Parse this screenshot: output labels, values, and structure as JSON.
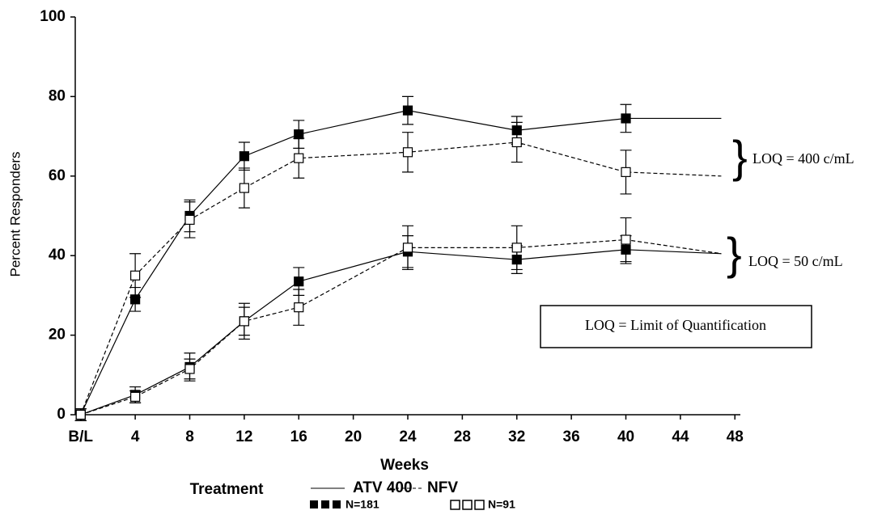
{
  "chart_data": {
    "type": "line",
    "x_label": "Weeks",
    "y_label": "Percent Responders",
    "x": [
      0,
      4,
      8,
      12,
      16,
      24,
      32,
      40,
      47
    ],
    "xlim": [
      -0.4,
      48.4
    ],
    "ylim": [
      0,
      100
    ],
    "xticks": [
      {
        "value": 0,
        "label": "B/L"
      },
      4,
      8,
      12,
      16,
      20,
      24,
      28,
      32,
      36,
      40,
      44,
      48
    ],
    "yticks": [
      0,
      20,
      40,
      60,
      80,
      100
    ],
    "series": [
      {
        "name": "ATV 400",
        "color": "#000000",
        "line_style": "solid",
        "marker": "filled",
        "values": [
          0,
          29,
          50,
          65,
          70.5,
          76.5,
          71.5,
          74.5,
          74.5
        ],
        "errors": [
          1.5,
          3,
          4,
          3.5,
          3.5,
          3.5,
          3.5,
          3.5,
          null
        ]
      },
      {
        "name": "NFV",
        "color": "#000000",
        "line_style": "dashed",
        "marker": "open",
        "values": [
          0,
          35,
          49,
          57,
          64.5,
          66,
          68.5,
          61,
          60
        ],
        "errors": [
          1.5,
          5.5,
          4.5,
          5,
          5,
          5,
          5,
          5.5,
          null
        ]
      },
      {
        "name": "ATV 400",
        "color": "#000000",
        "line_style": "solid",
        "marker": "filled",
        "values": [
          0,
          5,
          12,
          23.5,
          33.5,
          41,
          39,
          41.5,
          40.5
        ],
        "errors": [
          1.5,
          2,
          3.5,
          4.5,
          3.5,
          4,
          3.5,
          3.5,
          null
        ]
      },
      {
        "name": "NFV",
        "color": "#000000",
        "line_style": "dashed",
        "marker": "open",
        "values": [
          0,
          4.5,
          11.5,
          23.5,
          27,
          42,
          42,
          44,
          40.5
        ],
        "errors": [
          1.5,
          1.5,
          2.5,
          3.5,
          4.5,
          5.5,
          5.5,
          5.5,
          null
        ]
      }
    ],
    "legend": {
      "title": "Treatment",
      "counts": [
        "N=181",
        "N=91"
      ]
    },
    "annotations": [
      "LOQ = 400 c/mL",
      "LOQ = 50 c/mL",
      "LOQ = Limit of Quantification"
    ]
  }
}
